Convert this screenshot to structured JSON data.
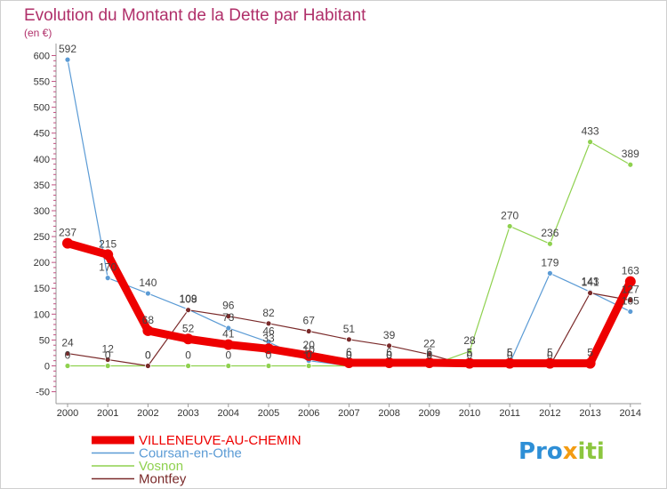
{
  "chart_data": {
    "type": "line",
    "title": "Evolution du Montant de la Dette par Habitant",
    "ylabel": "(en €)",
    "xlabel": "",
    "categories": [
      "2000",
      "2001",
      "2002",
      "2003",
      "2004",
      "2005",
      "2006",
      "2007",
      "2008",
      "2009",
      "2010",
      "2011",
      "2012",
      "2013",
      "2014"
    ],
    "yticks": [
      "-50",
      "0",
      "50",
      "100",
      "150",
      "200",
      "250",
      "300",
      "350",
      "400",
      "450",
      "500",
      "550",
      "600"
    ],
    "ylim": [
      -50,
      610
    ],
    "series": [
      {
        "name": "VILLENEUVE-AU-CHEMIN",
        "color": "#ee0000",
        "values": [
          237,
          215,
          68,
          52,
          41,
          33,
          20,
          6,
          6,
          6,
          5,
          5,
          5,
          5,
          163
        ]
      },
      {
        "name": "Coursan-en-Othe",
        "color": "#5b9bd5",
        "values": [
          592,
          170,
          140,
          109,
          73,
          46,
          10,
          0,
          0,
          0,
          5,
          5,
          179,
          143,
          105
        ]
      },
      {
        "name": "Vosnon",
        "color": "#8fd14f",
        "values": [
          0,
          0,
          0,
          0,
          0,
          0,
          0,
          0,
          0,
          0,
          28,
          270,
          236,
          433,
          389
        ]
      },
      {
        "name": "Montfey",
        "color": "#7a2a2a",
        "values": [
          24,
          12,
          0,
          108,
          96,
          82,
          67,
          51,
          39,
          22,
          0,
          0,
          0,
          141,
          127
        ]
      }
    ],
    "legend_position": "bottom-left",
    "grid": false
  },
  "logo": {
    "part1": "Pro",
    "part2": "x",
    "part3": "iti"
  }
}
